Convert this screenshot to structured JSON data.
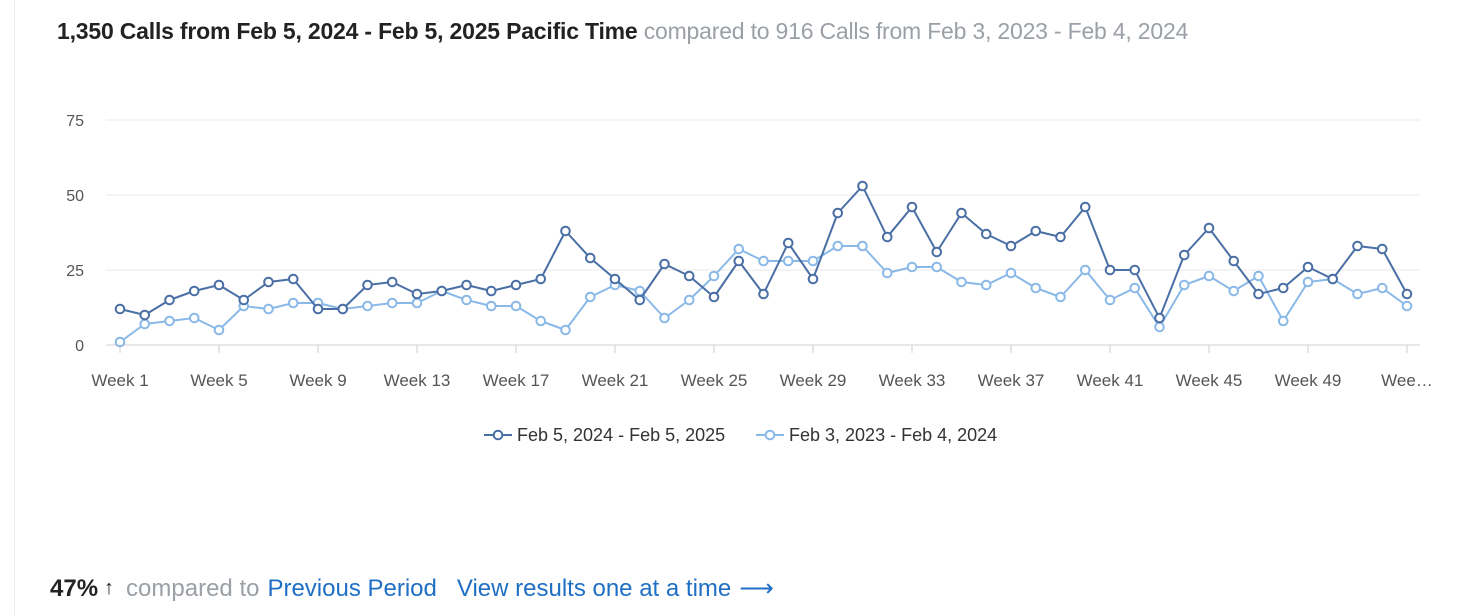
{
  "header": {
    "primary": "1,350 Calls from Feb 5, 2024 - Feb 5, 2025 Pacific Time",
    "secondary": "compared to 916 Calls from Feb 3, 2023 - Feb 4, 2024"
  },
  "footer": {
    "percent": "47%",
    "compared_text": "compared to",
    "previous_link": "Previous Period",
    "view_link": "View results one at a time"
  },
  "colors": {
    "current": "#4a6fa5",
    "previous": "#8ab9e8",
    "grid": "#e8e8e8",
    "axis_text": "#555555"
  },
  "chart_data": {
    "type": "line",
    "title": "",
    "xlabel": "",
    "ylabel": "",
    "ylim": [
      0,
      75
    ],
    "yticks": [
      0,
      25,
      50,
      75
    ],
    "grid": true,
    "legend_position": "bottom-center",
    "x_tick_labels": [
      "Week 1",
      "Week 5",
      "Week 9",
      "Week 13",
      "Week 17",
      "Week 21",
      "Week 25",
      "Week 29",
      "Week 33",
      "Week 37",
      "Week 41",
      "Week 45",
      "Week 49",
      "Wee…"
    ],
    "series": [
      {
        "name": "Feb 5, 2024 - Feb 5, 2025",
        "values": [
          12,
          10,
          15,
          18,
          20,
          15,
          21,
          22,
          12,
          12,
          20,
          21,
          17,
          18,
          20,
          18,
          20,
          22,
          38,
          29,
          22,
          15,
          27,
          23,
          16,
          28,
          17,
          34,
          22,
          44,
          53,
          36,
          46,
          31,
          44,
          37,
          33,
          38,
          36,
          46,
          25,
          25,
          9,
          30,
          39,
          28,
          17,
          19,
          26,
          22,
          33,
          32,
          17
        ]
      },
      {
        "name": "Feb 3, 2023 - Feb 4, 2024",
        "values": [
          1,
          7,
          8,
          9,
          5,
          13,
          12,
          14,
          14,
          12,
          13,
          14,
          14,
          18,
          15,
          13,
          13,
          8,
          5,
          16,
          20,
          18,
          9,
          15,
          23,
          32,
          28,
          28,
          28,
          33,
          33,
          24,
          26,
          26,
          21,
          20,
          24,
          19,
          16,
          25,
          15,
          19,
          6,
          20,
          23,
          18,
          23,
          8,
          21,
          22,
          17,
          19,
          13
        ]
      }
    ]
  }
}
